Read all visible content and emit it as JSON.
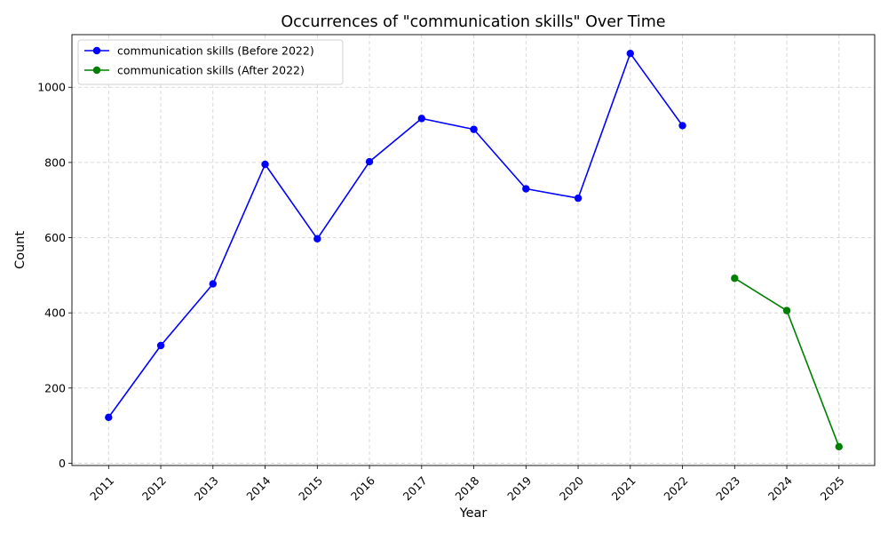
{
  "chart_data": {
    "type": "line",
    "title": "Occurrences of \"communication skills\" Over Time",
    "xlabel": "Year",
    "ylabel": "Count",
    "ylim": [
      -6,
      1140
    ],
    "yticks": [
      0,
      200,
      400,
      600,
      800,
      1000
    ],
    "categories": [
      "2011",
      "2012",
      "2013",
      "2014",
      "2015",
      "2016",
      "2017",
      "2018",
      "2019",
      "2020",
      "2021",
      "2022",
      "2023",
      "2024",
      "2025"
    ],
    "grid": true,
    "legend_position": "top-left",
    "series": [
      {
        "name": "communication skills (Before 2022)",
        "color": "#0000ff",
        "x": [
          "2011",
          "2012",
          "2013",
          "2014",
          "2015",
          "2016",
          "2017",
          "2018",
          "2019",
          "2020",
          "2021",
          "2022"
        ],
        "values": [
          122,
          313,
          477,
          795,
          597,
          802,
          917,
          888,
          730,
          705,
          1090,
          898
        ]
      },
      {
        "name": "communication skills (After 2022)",
        "color": "#008000",
        "x": [
          "2023",
          "2024",
          "2025"
        ],
        "values": [
          492,
          406,
          44
        ]
      }
    ]
  }
}
